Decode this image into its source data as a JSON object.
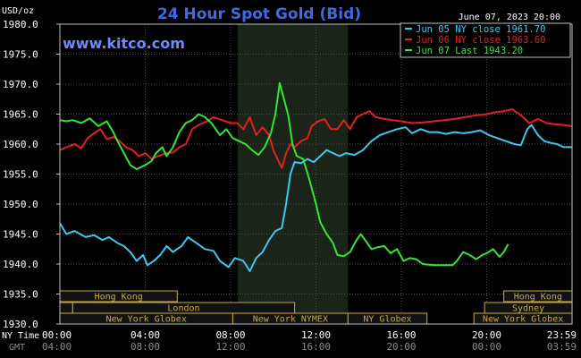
{
  "header": {
    "title": "24 Hour Spot Gold (Bid)",
    "unit": "USD/oz",
    "date": "June 07, 2023 20:00",
    "watermark": "www.kitco.com"
  },
  "colors": {
    "background": "#000000",
    "frame": "#bfbfbf",
    "grid": "#4a4a4a",
    "title": "#4169e1",
    "watermark": "#6b8cff",
    "nymex_shade": "#1b2418",
    "band_fill": "#121212",
    "band_border": "#c8aa3c",
    "band_text": "#c8aa3c",
    "axis_text": "#ffffff",
    "gmt_text": "#8c8c8c"
  },
  "chart_data": {
    "type": "line",
    "title": "24 Hour Spot Gold (Bid)",
    "ylabel": "USD/oz",
    "xlabel": "",
    "ylim": [
      1930,
      1980
    ],
    "xlim": [
      0,
      24
    ],
    "y_ticks": [
      "1930.0",
      "1935.0",
      "1940.0",
      "1945.0",
      "1950.0",
      "1955.0",
      "1960.0",
      "1965.0",
      "1970.0",
      "1975.0",
      "1980.0"
    ],
    "y_tick_values": [
      1930,
      1935,
      1940,
      1945,
      1950,
      1955,
      1960,
      1965,
      1970,
      1975,
      1980
    ],
    "x_ticks_nytime": [
      "00:00",
      "04:00",
      "08:00",
      "12:00",
      "16:00",
      "20:00",
      "23:59"
    ],
    "x_ticks_gmt": [
      "04:00",
      "08:00",
      "12:00",
      "16:00",
      "20:00",
      "00:00",
      "03:59"
    ],
    "x_tick_hours": [
      0,
      4,
      8,
      12,
      16,
      20,
      23.983
    ],
    "row_label_ny": "NY Time",
    "row_label_gmt": "GMT",
    "grid": true,
    "legend_position": "top-right",
    "nymex_session": [
      8.33,
      13.5
    ],
    "session_rows": [
      {
        "row": 0,
        "bands": [
          {
            "label": "Hong Kong",
            "start": 0,
            "end": 5.5
          },
          {
            "label": "Hong Kong",
            "start": 20.8,
            "end": 24
          }
        ]
      },
      {
        "row": 1,
        "bands": [
          {
            "label": "",
            "start": 0,
            "end": 0.6
          },
          {
            "label": "London",
            "start": 0.6,
            "end": 11
          },
          {
            "label": "Sydney",
            "start": 19.9,
            "end": 24
          }
        ]
      },
      {
        "row": 2,
        "bands": [
          {
            "label": "New York Globex",
            "start": 0,
            "end": 8.1
          },
          {
            "label": "New York NYMEX",
            "start": 8.1,
            "end": 13.5
          },
          {
            "label": "NY Globex",
            "start": 13.5,
            "end": 17.2
          },
          {
            "label": "New York Globex",
            "start": 19.4,
            "end": 24
          }
        ]
      }
    ],
    "series": [
      {
        "name": "Jun 05 NY close 1961.70",
        "color": "#3cc8f0",
        "points": [
          [
            0,
            1946.8
          ],
          [
            0.3,
            1945
          ],
          [
            0.7,
            1945.5
          ],
          [
            1.2,
            1944.5
          ],
          [
            1.6,
            1944.8
          ],
          [
            2.0,
            1944
          ],
          [
            2.3,
            1944.5
          ],
          [
            2.7,
            1943.5
          ],
          [
            3.0,
            1943
          ],
          [
            3.3,
            1942
          ],
          [
            3.6,
            1940.5
          ],
          [
            3.9,
            1941.5
          ],
          [
            4.1,
            1939.8
          ],
          [
            4.4,
            1940.5
          ],
          [
            4.7,
            1941.5
          ],
          [
            5.0,
            1943
          ],
          [
            5.3,
            1942
          ],
          [
            5.7,
            1943
          ],
          [
            6.0,
            1944.5
          ],
          [
            6.4,
            1943.5
          ],
          [
            6.8,
            1942.5
          ],
          [
            7.2,
            1942.2
          ],
          [
            7.5,
            1940.5
          ],
          [
            7.9,
            1939.5
          ],
          [
            8.2,
            1941
          ],
          [
            8.6,
            1940.5
          ],
          [
            8.9,
            1938.8
          ],
          [
            9.2,
            1941
          ],
          [
            9.5,
            1942
          ],
          [
            9.8,
            1944
          ],
          [
            10.1,
            1945.5
          ],
          [
            10.4,
            1946
          ],
          [
            10.6,
            1950
          ],
          [
            10.8,
            1955
          ],
          [
            11.0,
            1957
          ],
          [
            11.3,
            1956.8
          ],
          [
            11.6,
            1957.5
          ],
          [
            11.9,
            1957
          ],
          [
            12.2,
            1958
          ],
          [
            12.5,
            1959
          ],
          [
            12.8,
            1958.5
          ],
          [
            13.1,
            1958
          ],
          [
            13.4,
            1958.5
          ],
          [
            13.8,
            1958.2
          ],
          [
            14.2,
            1959
          ],
          [
            14.6,
            1960.5
          ],
          [
            15.0,
            1961.5
          ],
          [
            15.4,
            1962
          ],
          [
            15.8,
            1962.5
          ],
          [
            16.2,
            1962.8
          ],
          [
            16.5,
            1961.8
          ],
          [
            16.9,
            1962.5
          ],
          [
            17.3,
            1962
          ],
          [
            17.7,
            1962
          ],
          [
            18.1,
            1961.7
          ],
          [
            18.5,
            1962
          ],
          [
            18.9,
            1961.8
          ],
          [
            19.3,
            1962
          ],
          [
            19.7,
            1962.3
          ],
          [
            20.1,
            1961.5
          ],
          [
            20.5,
            1961
          ],
          [
            20.9,
            1960.5
          ],
          [
            21.3,
            1960
          ],
          [
            21.6,
            1959.8
          ],
          [
            21.9,
            1962.5
          ],
          [
            22.1,
            1963.2
          ],
          [
            22.4,
            1961.5
          ],
          [
            22.7,
            1960.5
          ],
          [
            23.0,
            1960.2
          ],
          [
            23.3,
            1960
          ],
          [
            23.6,
            1959.5
          ],
          [
            23.98,
            1959.5
          ]
        ]
      },
      {
        "name": "Jun 06 NY close 1963.60",
        "color": "#e61e1e",
        "points": [
          [
            0,
            1959
          ],
          [
            0.3,
            1959.5
          ],
          [
            0.7,
            1960
          ],
          [
            1.0,
            1959.3
          ],
          [
            1.3,
            1961
          ],
          [
            1.6,
            1961.8
          ],
          [
            1.9,
            1962.5
          ],
          [
            2.2,
            1960.8
          ],
          [
            2.5,
            1961.2
          ],
          [
            2.8,
            1960.5
          ],
          [
            3.1,
            1959.5
          ],
          [
            3.4,
            1959
          ],
          [
            3.7,
            1958
          ],
          [
            4.0,
            1958.5
          ],
          [
            4.3,
            1957.5
          ],
          [
            4.6,
            1958
          ],
          [
            5.0,
            1958.5
          ],
          [
            5.3,
            1958.6
          ],
          [
            5.6,
            1959.5
          ],
          [
            5.9,
            1960
          ],
          [
            6.2,
            1962.5
          ],
          [
            6.5,
            1963.2
          ],
          [
            6.9,
            1963.8
          ],
          [
            7.2,
            1964.5
          ],
          [
            7.6,
            1964
          ],
          [
            8.0,
            1963.5
          ],
          [
            8.3,
            1963.5
          ],
          [
            8.6,
            1962.5
          ],
          [
            8.9,
            1964.5
          ],
          [
            9.2,
            1961.5
          ],
          [
            9.5,
            1962.8
          ],
          [
            9.8,
            1961.5
          ],
          [
            10.0,
            1959
          ],
          [
            10.2,
            1957.5
          ],
          [
            10.4,
            1956
          ],
          [
            10.6,
            1958.5
          ],
          [
            10.8,
            1960
          ],
          [
            11.0,
            1959.5
          ],
          [
            11.3,
            1960.5
          ],
          [
            11.6,
            1961
          ],
          [
            11.8,
            1963
          ],
          [
            12.1,
            1963.8
          ],
          [
            12.4,
            1964.2
          ],
          [
            12.7,
            1962.5
          ],
          [
            13.0,
            1962.5
          ],
          [
            13.3,
            1964
          ],
          [
            13.6,
            1962.5
          ],
          [
            13.9,
            1964.5
          ],
          [
            14.2,
            1965
          ],
          [
            14.5,
            1965.5
          ],
          [
            14.8,
            1964.5
          ],
          [
            15.2,
            1964.2
          ],
          [
            15.6,
            1964
          ],
          [
            16.0,
            1963.8
          ],
          [
            16.5,
            1963.5
          ],
          [
            17.0,
            1963.6
          ],
          [
            17.5,
            1963.8
          ],
          [
            18.0,
            1964
          ],
          [
            18.5,
            1964.2
          ],
          [
            19.0,
            1964.5
          ],
          [
            19.5,
            1964.8
          ],
          [
            20.0,
            1965
          ],
          [
            20.4,
            1965.3
          ],
          [
            20.8,
            1965.5
          ],
          [
            21.2,
            1965.8
          ],
          [
            21.6,
            1964.8
          ],
          [
            22.0,
            1963.5
          ],
          [
            22.4,
            1964.2
          ],
          [
            22.8,
            1963.5
          ],
          [
            23.2,
            1963.3
          ],
          [
            23.6,
            1963.2
          ],
          [
            23.98,
            1963
          ]
        ]
      },
      {
        "name": "Jun 07 Last 1943.20",
        "color": "#32e632",
        "points": [
          [
            0,
            1964
          ],
          [
            0.3,
            1963.8
          ],
          [
            0.6,
            1964
          ],
          [
            1.0,
            1963.5
          ],
          [
            1.4,
            1964.3
          ],
          [
            1.8,
            1963
          ],
          [
            2.2,
            1963.8
          ],
          [
            2.5,
            1962
          ],
          [
            2.7,
            1960.5
          ],
          [
            3.0,
            1958.5
          ],
          [
            3.3,
            1956.5
          ],
          [
            3.6,
            1955.8
          ],
          [
            4.0,
            1956.5
          ],
          [
            4.3,
            1957.2
          ],
          [
            4.5,
            1958.5
          ],
          [
            4.8,
            1959.5
          ],
          [
            5.0,
            1958
          ],
          [
            5.3,
            1959.5
          ],
          [
            5.6,
            1962
          ],
          [
            5.9,
            1963.5
          ],
          [
            6.2,
            1964
          ],
          [
            6.5,
            1965
          ],
          [
            6.8,
            1964.5
          ],
          [
            7.1,
            1963.5
          ],
          [
            7.5,
            1961.5
          ],
          [
            7.8,
            1962.5
          ],
          [
            8.1,
            1961
          ],
          [
            8.4,
            1960.5
          ],
          [
            8.7,
            1960
          ],
          [
            9.0,
            1959
          ],
          [
            9.3,
            1958.2
          ],
          [
            9.6,
            1959.5
          ],
          [
            9.9,
            1962
          ],
          [
            10.1,
            1965
          ],
          [
            10.3,
            1970.2
          ],
          [
            10.5,
            1967.5
          ],
          [
            10.7,
            1964.8
          ],
          [
            10.9,
            1960
          ],
          [
            11.1,
            1958
          ],
          [
            11.4,
            1957.5
          ],
          [
            11.7,
            1954
          ],
          [
            12.0,
            1950
          ],
          [
            12.2,
            1947
          ],
          [
            12.5,
            1945
          ],
          [
            12.8,
            1943.5
          ],
          [
            13.0,
            1941.5
          ],
          [
            13.3,
            1941.3
          ],
          [
            13.6,
            1942
          ],
          [
            13.9,
            1944
          ],
          [
            14.1,
            1945
          ],
          [
            14.3,
            1944
          ],
          [
            14.6,
            1942.5
          ],
          [
            14.9,
            1942.8
          ],
          [
            15.2,
            1943
          ],
          [
            15.5,
            1941.8
          ],
          [
            15.8,
            1942.5
          ],
          [
            16.1,
            1940.5
          ],
          [
            16.4,
            1941
          ],
          [
            16.7,
            1940.8
          ],
          [
            17.0,
            1940
          ],
          [
            17.3,
            1939.9
          ],
          [
            17.6,
            1939.8
          ],
          [
            18.0,
            1939.8
          ],
          [
            18.4,
            1939.8
          ],
          [
            18.6,
            1940.5
          ],
          [
            18.9,
            1942
          ],
          [
            19.2,
            1941.5
          ],
          [
            19.5,
            1940.8
          ],
          [
            19.8,
            1941.5
          ],
          [
            20.0,
            1941.8
          ],
          [
            20.3,
            1942.5
          ],
          [
            20.6,
            1941.2
          ],
          [
            20.8,
            1942
          ],
          [
            21.0,
            1943.3
          ]
        ]
      }
    ]
  }
}
